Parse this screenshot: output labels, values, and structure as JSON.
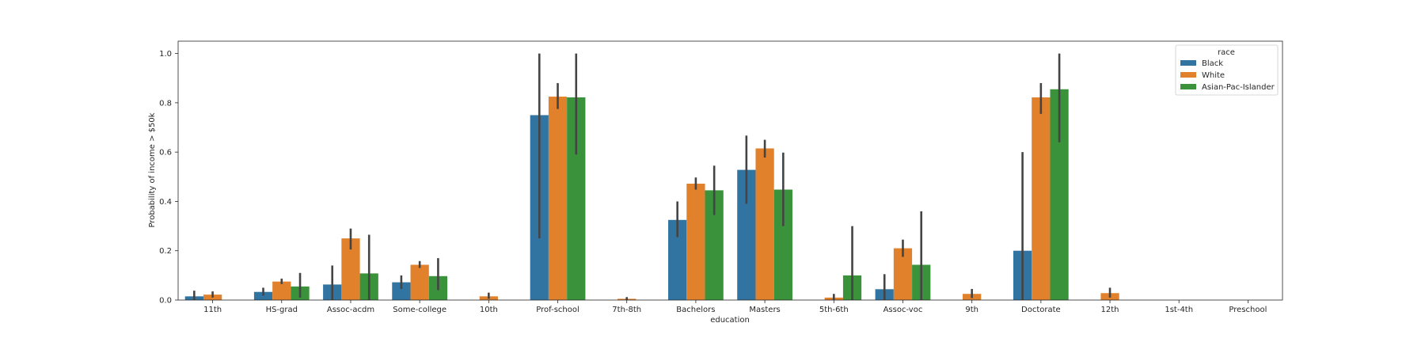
{
  "chart_data": {
    "type": "bar",
    "xlabel": "education",
    "ylabel": "Probability of income > $50k",
    "ylim": [
      0,
      1.05
    ],
    "yticks": [
      0.0,
      0.2,
      0.4,
      0.6,
      0.8,
      1.0
    ],
    "ytick_labels": [
      "0.0",
      "0.2",
      "0.4",
      "0.6",
      "0.8",
      "1.0"
    ],
    "categories": [
      "11th",
      "HS-grad",
      "Assoc-acdm",
      "Some-college",
      "10th",
      "Prof-school",
      "7th-8th",
      "Bachelors",
      "Masters",
      "5th-6th",
      "Assoc-voc",
      "9th",
      "Doctorate",
      "12th",
      "1st-4th",
      "Preschool"
    ],
    "legend": {
      "title": "race",
      "position": "upper-right"
    },
    "series": [
      {
        "name": "Black",
        "color": "#3274a1",
        "values": [
          0.015,
          0.033,
          0.063,
          0.072,
          0.0,
          0.75,
          0.0,
          0.325,
          0.528,
          0.0,
          0.044,
          0.0,
          0.2,
          0.0,
          0.0,
          0.0
        ],
        "ci_low": [
          0.0,
          0.018,
          0.0,
          0.045,
          0.0,
          0.25,
          0.0,
          0.255,
          0.39,
          0.0,
          0.0,
          0.0,
          0.0,
          0.0,
          0.0,
          0.0
        ],
        "ci_high": [
          0.038,
          0.05,
          0.14,
          0.1,
          0.0,
          1.0,
          0.0,
          0.4,
          0.667,
          0.0,
          0.105,
          0.0,
          0.6,
          0.0,
          0.0,
          0.0
        ]
      },
      {
        "name": "White",
        "color": "#e1812c",
        "values": [
          0.022,
          0.075,
          0.25,
          0.143,
          0.015,
          0.825,
          0.005,
          0.472,
          0.615,
          0.01,
          0.21,
          0.025,
          0.822,
          0.028,
          0.0,
          0.0
        ],
        "ci_low": [
          0.01,
          0.065,
          0.205,
          0.13,
          0.005,
          0.775,
          0.0,
          0.448,
          0.578,
          0.0,
          0.175,
          0.008,
          0.755,
          0.01,
          0.0,
          0.0
        ],
        "ci_high": [
          0.035,
          0.087,
          0.29,
          0.158,
          0.03,
          0.88,
          0.012,
          0.497,
          0.65,
          0.025,
          0.245,
          0.045,
          0.88,
          0.05,
          0.0,
          0.0
        ]
      },
      {
        "name": "Asian-Pac-Islander",
        "color": "#3a923a",
        "values": [
          0.0,
          0.055,
          0.108,
          0.097,
          0.0,
          0.822,
          0.0,
          0.445,
          0.448,
          0.1,
          0.143,
          0.0,
          0.855,
          0.0,
          0.0,
          0.0
        ],
        "ci_low": [
          0.0,
          0.01,
          0.0,
          0.04,
          0.0,
          0.59,
          0.0,
          0.345,
          0.3,
          0.0,
          0.0,
          0.0,
          0.64,
          0.0,
          0.0,
          0.0
        ],
        "ci_high": [
          0.0,
          0.11,
          0.265,
          0.17,
          0.0,
          1.0,
          0.0,
          0.545,
          0.598,
          0.3,
          0.36,
          0.0,
          1.0,
          0.0,
          0.0,
          0.0
        ]
      }
    ]
  }
}
